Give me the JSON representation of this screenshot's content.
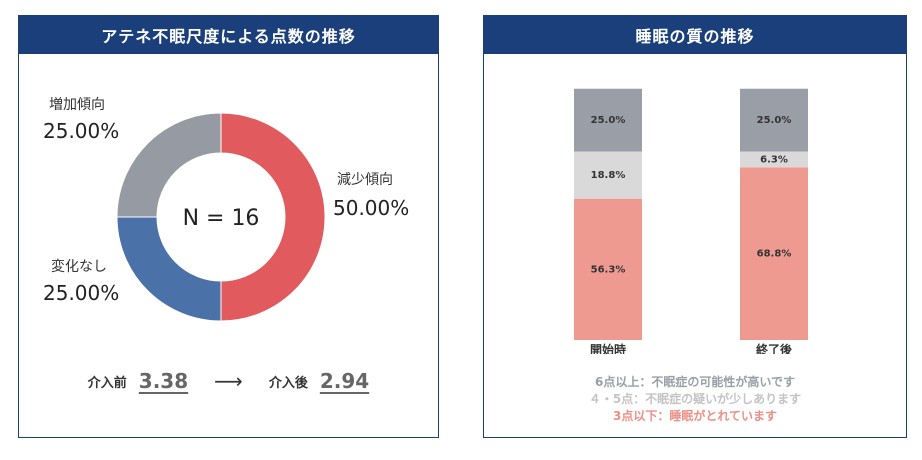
{
  "left_panel": {
    "title": "アテネ不眠尺度による点数の推移",
    "center_label": "N = 16",
    "segments": [
      {
        "label": "減少傾向",
        "value_text": "50.00%",
        "color": "#e05a5e"
      },
      {
        "label": "変化なし",
        "value_text": "25.00%",
        "color": "#4a72a8"
      },
      {
        "label": "増加傾向",
        "value_text": "25.00%",
        "color": "#959aa3"
      }
    ],
    "before_label": "介入前",
    "before_value": "3.38",
    "arrow": "⟶",
    "after_label": "介入後",
    "after_value": "2.94"
  },
  "right_panel": {
    "title": "睡眠の質の推移",
    "legend": [
      {
        "text": "6点以上：不眠症の可能性が高いです",
        "color": "#9a9ea6"
      },
      {
        "text": "４・5点：不眠症の疑いが少しあります",
        "color": "#c4c4c4"
      },
      {
        "text": "3点以下：睡眠がとれています",
        "color": "#ee8f87"
      }
    ]
  },
  "chart_data": [
    {
      "type": "pie",
      "title": "アテネ不眠尺度による点数の推移",
      "center_text": "N = 16",
      "labels": [
        "減少傾向",
        "変化なし",
        "増加傾向"
      ],
      "values": [
        50.0,
        25.0,
        25.0
      ],
      "colors": [
        "#e05a5e",
        "#4a72a8",
        "#959aa3"
      ]
    },
    {
      "type": "bar",
      "stacked": true,
      "title": "睡眠の質の推移",
      "categories": [
        "開始時",
        "終了後"
      ],
      "series": [
        {
          "values": [
            56.3,
            68.8
          ],
          "labels": [
            "56.3%",
            "68.8%"
          ],
          "color": "#ee9a90"
        },
        {
          "values": [
            18.8,
            6.3
          ],
          "labels": [
            "18.8%",
            "6.3%"
          ],
          "color": "#d9d9d9"
        },
        {
          "values": [
            25.0,
            25.0
          ],
          "labels": [
            "25.0%",
            "25.0%"
          ],
          "color": "#9a9ea6"
        }
      ],
      "ylim": [
        0,
        100
      ]
    }
  ]
}
